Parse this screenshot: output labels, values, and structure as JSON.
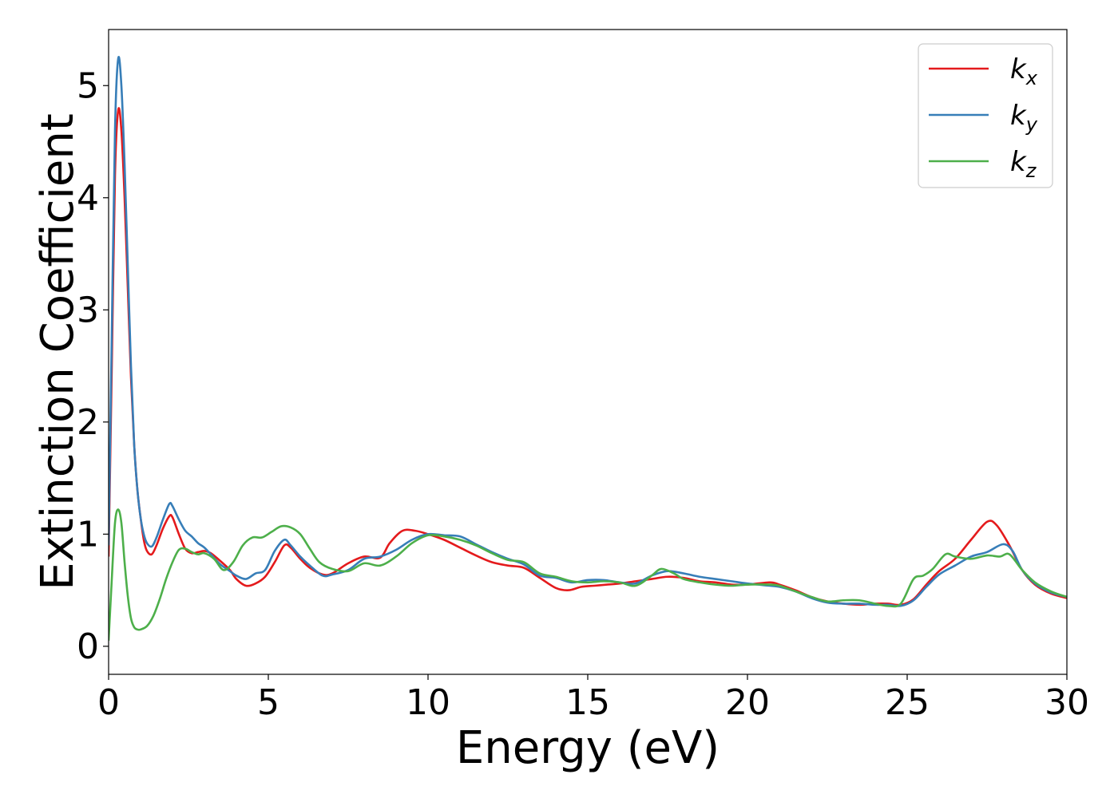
{
  "chart_data": {
    "type": "line",
    "xlabel": "Energy (eV)",
    "ylabel": "Extinction Coefficient",
    "xlim": [
      0,
      30
    ],
    "ylim": [
      -0.25,
      5.5
    ],
    "x_ticks": [
      0,
      5,
      10,
      15,
      20,
      25,
      30
    ],
    "y_ticks": [
      0,
      1,
      2,
      3,
      4,
      5
    ],
    "grid": false,
    "legend_position": "top-right",
    "colors": {
      "kx": "#e41a1c",
      "ky": "#377eb8",
      "kz": "#4daf4a"
    },
    "series": [
      {
        "key": "kx",
        "name": "k",
        "subscript": "x",
        "color": "#e41a1c",
        "points": [
          [
            0,
            0.8
          ],
          [
            0.1,
            2.5
          ],
          [
            0.2,
            4.2
          ],
          [
            0.3,
            4.78
          ],
          [
            0.4,
            4.6
          ],
          [
            0.5,
            4.0
          ],
          [
            0.6,
            3.2
          ],
          [
            0.7,
            2.4
          ],
          [
            0.8,
            1.8
          ],
          [
            0.9,
            1.4
          ],
          [
            1.0,
            1.15
          ],
          [
            1.1,
            0.95
          ],
          [
            1.2,
            0.85
          ],
          [
            1.35,
            0.82
          ],
          [
            1.5,
            0.9
          ],
          [
            1.7,
            1.05
          ],
          [
            1.9,
            1.16
          ],
          [
            2.0,
            1.15
          ],
          [
            2.2,
            1.0
          ],
          [
            2.4,
            0.87
          ],
          [
            2.6,
            0.83
          ],
          [
            2.8,
            0.84
          ],
          [
            3.0,
            0.85
          ],
          [
            3.2,
            0.83
          ],
          [
            3.5,
            0.76
          ],
          [
            3.8,
            0.68
          ],
          [
            4.0,
            0.6
          ],
          [
            4.3,
            0.54
          ],
          [
            4.6,
            0.56
          ],
          [
            4.9,
            0.62
          ],
          [
            5.2,
            0.75
          ],
          [
            5.5,
            0.9
          ],
          [
            5.7,
            0.88
          ],
          [
            6.0,
            0.78
          ],
          [
            6.3,
            0.7
          ],
          [
            6.7,
            0.64
          ],
          [
            7.0,
            0.65
          ],
          [
            7.5,
            0.74
          ],
          [
            8.0,
            0.8
          ],
          [
            8.5,
            0.79
          ],
          [
            8.8,
            0.92
          ],
          [
            9.2,
            1.03
          ],
          [
            9.6,
            1.03
          ],
          [
            10.0,
            1.0
          ],
          [
            10.5,
            0.95
          ],
          [
            11.0,
            0.88
          ],
          [
            11.5,
            0.81
          ],
          [
            12.0,
            0.75
          ],
          [
            12.5,
            0.72
          ],
          [
            13.0,
            0.7
          ],
          [
            13.5,
            0.61
          ],
          [
            14.0,
            0.52
          ],
          [
            14.4,
            0.5
          ],
          [
            14.8,
            0.53
          ],
          [
            15.2,
            0.54
          ],
          [
            15.6,
            0.55
          ],
          [
            16.0,
            0.56
          ],
          [
            16.5,
            0.58
          ],
          [
            17.0,
            0.6
          ],
          [
            17.5,
            0.62
          ],
          [
            18.0,
            0.61
          ],
          [
            18.5,
            0.58
          ],
          [
            19.0,
            0.57
          ],
          [
            19.5,
            0.55
          ],
          [
            20.0,
            0.55
          ],
          [
            20.7,
            0.57
          ],
          [
            21.0,
            0.55
          ],
          [
            21.5,
            0.5
          ],
          [
            22.0,
            0.44
          ],
          [
            22.5,
            0.4
          ],
          [
            23.0,
            0.38
          ],
          [
            23.5,
            0.37
          ],
          [
            24.0,
            0.38
          ],
          [
            24.4,
            0.38
          ],
          [
            24.8,
            0.37
          ],
          [
            25.2,
            0.42
          ],
          [
            25.6,
            0.55
          ],
          [
            26.0,
            0.67
          ],
          [
            26.5,
            0.78
          ],
          [
            27.0,
            0.95
          ],
          [
            27.5,
            1.11
          ],
          [
            27.8,
            1.08
          ],
          [
            28.2,
            0.9
          ],
          [
            28.6,
            0.68
          ],
          [
            29.0,
            0.55
          ],
          [
            29.5,
            0.47
          ],
          [
            30.0,
            0.43
          ]
        ]
      },
      {
        "key": "ky",
        "name": "k",
        "subscript": "y",
        "color": "#377eb8",
        "points": [
          [
            0,
            0.9
          ],
          [
            0.1,
            2.8
          ],
          [
            0.2,
            4.6
          ],
          [
            0.3,
            5.24
          ],
          [
            0.4,
            5.0
          ],
          [
            0.5,
            4.3
          ],
          [
            0.6,
            3.4
          ],
          [
            0.7,
            2.5
          ],
          [
            0.8,
            1.8
          ],
          [
            0.9,
            1.4
          ],
          [
            1.0,
            1.15
          ],
          [
            1.1,
            1.0
          ],
          [
            1.2,
            0.92
          ],
          [
            1.35,
            0.89
          ],
          [
            1.5,
            0.97
          ],
          [
            1.7,
            1.13
          ],
          [
            1.9,
            1.27
          ],
          [
            2.0,
            1.25
          ],
          [
            2.2,
            1.13
          ],
          [
            2.4,
            1.03
          ],
          [
            2.6,
            0.98
          ],
          [
            2.8,
            0.92
          ],
          [
            3.0,
            0.88
          ],
          [
            3.2,
            0.82
          ],
          [
            3.5,
            0.73
          ],
          [
            3.8,
            0.67
          ],
          [
            4.0,
            0.63
          ],
          [
            4.3,
            0.6
          ],
          [
            4.6,
            0.65
          ],
          [
            4.9,
            0.68
          ],
          [
            5.2,
            0.85
          ],
          [
            5.5,
            0.95
          ],
          [
            5.7,
            0.9
          ],
          [
            6.0,
            0.8
          ],
          [
            6.3,
            0.72
          ],
          [
            6.7,
            0.63
          ],
          [
            7.0,
            0.64
          ],
          [
            7.5,
            0.68
          ],
          [
            8.0,
            0.78
          ],
          [
            8.5,
            0.8
          ],
          [
            9.0,
            0.86
          ],
          [
            9.5,
            0.95
          ],
          [
            10.0,
            1.0
          ],
          [
            10.5,
            0.99
          ],
          [
            11.0,
            0.98
          ],
          [
            11.5,
            0.91
          ],
          [
            12.0,
            0.84
          ],
          [
            12.5,
            0.78
          ],
          [
            13.0,
            0.73
          ],
          [
            13.5,
            0.63
          ],
          [
            14.0,
            0.61
          ],
          [
            14.5,
            0.57
          ],
          [
            15.0,
            0.59
          ],
          [
            15.5,
            0.59
          ],
          [
            16.0,
            0.57
          ],
          [
            16.5,
            0.56
          ],
          [
            17.0,
            0.63
          ],
          [
            17.5,
            0.67
          ],
          [
            18.0,
            0.65
          ],
          [
            18.5,
            0.62
          ],
          [
            19.0,
            0.6
          ],
          [
            19.5,
            0.58
          ],
          [
            20.0,
            0.56
          ],
          [
            20.7,
            0.54
          ],
          [
            21.0,
            0.53
          ],
          [
            21.5,
            0.49
          ],
          [
            22.0,
            0.43
          ],
          [
            22.5,
            0.39
          ],
          [
            23.0,
            0.38
          ],
          [
            23.5,
            0.38
          ],
          [
            24.0,
            0.37
          ],
          [
            24.4,
            0.37
          ],
          [
            24.8,
            0.36
          ],
          [
            25.2,
            0.41
          ],
          [
            25.6,
            0.53
          ],
          [
            26.0,
            0.64
          ],
          [
            26.5,
            0.72
          ],
          [
            27.0,
            0.8
          ],
          [
            27.5,
            0.84
          ],
          [
            28.0,
            0.91
          ],
          [
            28.3,
            0.85
          ],
          [
            28.6,
            0.68
          ],
          [
            29.0,
            0.56
          ],
          [
            29.5,
            0.48
          ],
          [
            30.0,
            0.44
          ]
        ]
      },
      {
        "key": "kz",
        "name": "k",
        "subscript": "z",
        "color": "#4daf4a",
        "points": [
          [
            0,
            0.05
          ],
          [
            0.1,
            0.6
          ],
          [
            0.2,
            1.1
          ],
          [
            0.3,
            1.22
          ],
          [
            0.4,
            1.1
          ],
          [
            0.5,
            0.75
          ],
          [
            0.6,
            0.45
          ],
          [
            0.7,
            0.25
          ],
          [
            0.8,
            0.17
          ],
          [
            0.9,
            0.15
          ],
          [
            1.0,
            0.15
          ],
          [
            1.2,
            0.18
          ],
          [
            1.4,
            0.27
          ],
          [
            1.6,
            0.42
          ],
          [
            1.8,
            0.6
          ],
          [
            2.0,
            0.75
          ],
          [
            2.2,
            0.86
          ],
          [
            2.4,
            0.87
          ],
          [
            2.6,
            0.84
          ],
          [
            2.8,
            0.82
          ],
          [
            3.0,
            0.83
          ],
          [
            3.3,
            0.78
          ],
          [
            3.6,
            0.68
          ],
          [
            3.9,
            0.75
          ],
          [
            4.2,
            0.9
          ],
          [
            4.5,
            0.97
          ],
          [
            4.8,
            0.97
          ],
          [
            5.1,
            1.02
          ],
          [
            5.4,
            1.07
          ],
          [
            5.7,
            1.06
          ],
          [
            6.0,
            1.0
          ],
          [
            6.3,
            0.87
          ],
          [
            6.6,
            0.75
          ],
          [
            7.0,
            0.69
          ],
          [
            7.5,
            0.67
          ],
          [
            8.0,
            0.74
          ],
          [
            8.5,
            0.72
          ],
          [
            9.0,
            0.8
          ],
          [
            9.5,
            0.92
          ],
          [
            10.0,
            0.99
          ],
          [
            10.5,
            0.98
          ],
          [
            11.0,
            0.95
          ],
          [
            11.5,
            0.9
          ],
          [
            12.0,
            0.83
          ],
          [
            12.5,
            0.77
          ],
          [
            13.0,
            0.75
          ],
          [
            13.5,
            0.65
          ],
          [
            14.0,
            0.62
          ],
          [
            14.5,
            0.58
          ],
          [
            15.0,
            0.57
          ],
          [
            15.5,
            0.58
          ],
          [
            16.0,
            0.57
          ],
          [
            16.5,
            0.54
          ],
          [
            17.0,
            0.63
          ],
          [
            17.3,
            0.69
          ],
          [
            17.7,
            0.65
          ],
          [
            18.0,
            0.6
          ],
          [
            18.5,
            0.57
          ],
          [
            19.0,
            0.55
          ],
          [
            19.5,
            0.54
          ],
          [
            20.0,
            0.55
          ],
          [
            20.7,
            0.55
          ],
          [
            21.0,
            0.54
          ],
          [
            21.5,
            0.49
          ],
          [
            22.0,
            0.44
          ],
          [
            22.5,
            0.4
          ],
          [
            23.0,
            0.41
          ],
          [
            23.5,
            0.41
          ],
          [
            24.0,
            0.38
          ],
          [
            24.4,
            0.36
          ],
          [
            24.8,
            0.38
          ],
          [
            25.2,
            0.6
          ],
          [
            25.5,
            0.63
          ],
          [
            25.8,
            0.69
          ],
          [
            26.2,
            0.82
          ],
          [
            26.5,
            0.8
          ],
          [
            27.0,
            0.78
          ],
          [
            27.5,
            0.81
          ],
          [
            27.9,
            0.8
          ],
          [
            28.2,
            0.82
          ],
          [
            28.6,
            0.68
          ],
          [
            29.0,
            0.57
          ],
          [
            29.5,
            0.49
          ],
          [
            30.0,
            0.44
          ]
        ]
      }
    ]
  }
}
